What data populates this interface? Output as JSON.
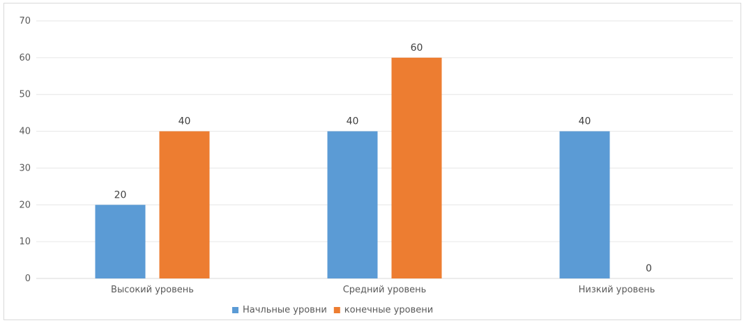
{
  "chart_data": {
    "type": "bar",
    "title": "",
    "xlabel": "",
    "ylabel": "",
    "categories": [
      "Высокий уровень",
      "Средний уровень",
      "Низкий уровень"
    ],
    "series": [
      {
        "name": "Начльные уровни",
        "values": [
          20,
          40,
          40
        ],
        "color": "#5b9bd5"
      },
      {
        "name": "конечные уровени",
        "values": [
          40,
          60,
          0
        ],
        "color": "#ed7d31"
      }
    ],
    "ylim": [
      0,
      70
    ],
    "yticks": [
      0,
      10,
      20,
      30,
      40,
      50,
      60,
      70
    ],
    "grid": true,
    "data_labels": true,
    "legend_position": "bottom"
  }
}
